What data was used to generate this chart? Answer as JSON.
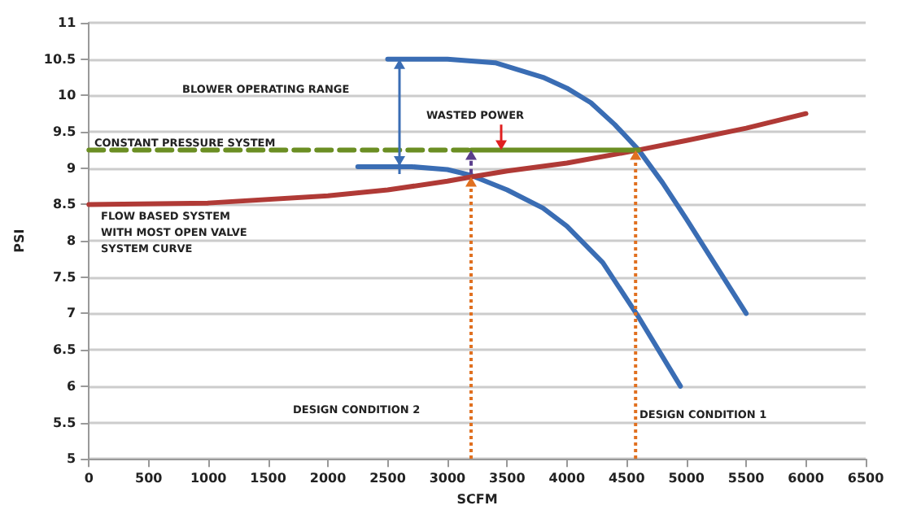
{
  "chart_data": {
    "type": "line",
    "xlabel": "SCFM",
    "ylabel": "PSI",
    "xlim": [
      0,
      6500
    ],
    "xticks": [
      0,
      500,
      1000,
      1500,
      2000,
      2500,
      3000,
      3500,
      4000,
      4500,
      5000,
      5500,
      6000,
      6500
    ],
    "ylim": [
      5,
      11
    ],
    "yticks": [
      5,
      5.5,
      6,
      6.5,
      7,
      7.5,
      8,
      8.5,
      9,
      9.5,
      10,
      10.5,
      11
    ],
    "grid": "y",
    "marker": "none",
    "line_style": "solid",
    "series": [
      {
        "color": "#3a6db4",
        "x": [
          2500,
          3000,
          3400,
          3800,
          4000,
          4200,
          4400,
          4600,
          4800,
          5000,
          5250,
          5500
        ],
        "values": [
          10.5,
          10.5,
          10.45,
          10.25,
          10.1,
          9.9,
          9.6,
          9.25,
          8.8,
          8.3,
          7.65,
          7.0
        ]
      },
      {
        "color": "#3a6db4",
        "x": [
          2250,
          2700,
          3000,
          3200,
          3500,
          3800,
          4000,
          4300,
          4600,
          4950
        ],
        "values": [
          9.02,
          9.02,
          8.98,
          8.9,
          8.7,
          8.45,
          8.2,
          7.7,
          6.95,
          6.0
        ]
      },
      {
        "color": "#b03a36",
        "x": [
          0,
          1000,
          2000,
          2500,
          3000,
          3200,
          3500,
          4000,
          4600,
          5000,
          5500,
          6000
        ],
        "values": [
          8.5,
          8.52,
          8.62,
          8.7,
          8.82,
          8.88,
          8.96,
          9.07,
          9.25,
          9.38,
          9.55,
          9.75
        ]
      },
      {
        "color": "#6b8e23",
        "line_style": "dashed",
        "x": [
          0,
          3200
        ],
        "values": [
          9.25,
          9.25
        ]
      },
      {
        "color": "#6b8e23",
        "x": [
          3200,
          4600
        ],
        "values": [
          9.25,
          9.25
        ]
      }
    ],
    "annotations": [
      "BLOWER OPERATING RANGE",
      "WASTED POWER",
      "CONSTANT PRESSURE SYSTEM",
      "FLOW BASED SYSTEM\nWITH MOST OPEN VALVE\nSYSTEM CURVE",
      "DESIGN CONDITION 2",
      "DESIGN CONDITION 1"
    ]
  }
}
